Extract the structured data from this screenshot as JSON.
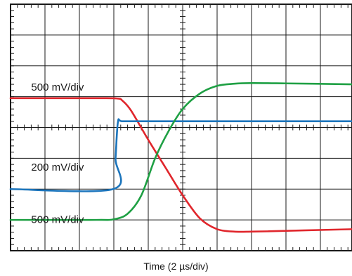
{
  "chart_data": {
    "type": "line",
    "xlabel": "Time (2 µs/div)",
    "grid": true,
    "divisions": {
      "x": 10,
      "y": 8
    },
    "xlim": [
      0,
      10
    ],
    "ylim": [
      -4,
      4
    ],
    "annotations": [
      {
        "text": "500 mV/div",
        "x": 0.6,
        "y": 1.2,
        "name": "red-scale-label"
      },
      {
        "text": "200 mV/div",
        "x": 0.6,
        "y": -1.4,
        "name": "blue-scale-label"
      },
      {
        "text": "500 mV/div",
        "x": 0.6,
        "y": -3.1,
        "name": "green-scale-label"
      }
    ],
    "series": [
      {
        "color": "#e0262c",
        "x": [
          0,
          2.5,
          3.1,
          3.25,
          3.5,
          4.0,
          4.5,
          5.0,
          5.5,
          6.0,
          6.5,
          7.0,
          7.5,
          8.5,
          10.0
        ],
        "y": [
          0.95,
          0.95,
          0.94,
          0.87,
          0.55,
          -0.4,
          -1.3,
          -2.2,
          -2.95,
          -3.3,
          -3.38,
          -3.38,
          -3.37,
          -3.34,
          -3.3
        ]
      },
      {
        "color": "#1c75bc",
        "x": [
          0,
          2.98,
          3.05,
          3.12,
          3.25,
          4.0,
          6.0,
          10.0
        ],
        "y": [
          -2.0,
          -2.0,
          -1.0,
          0.18,
          0.2,
          0.2,
          0.2,
          0.2
        ]
      },
      {
        "color": "#1fa044",
        "x": [
          0,
          2.5,
          3.0,
          3.4,
          3.8,
          4.2,
          4.6,
          5.0,
          5.5,
          6.0,
          6.5,
          7.0,
          8.0,
          10.0
        ],
        "y": [
          -3.0,
          -3.0,
          -2.98,
          -2.8,
          -2.2,
          -1.0,
          -0.1,
          0.6,
          1.1,
          1.35,
          1.42,
          1.44,
          1.43,
          1.4
        ]
      }
    ]
  }
}
